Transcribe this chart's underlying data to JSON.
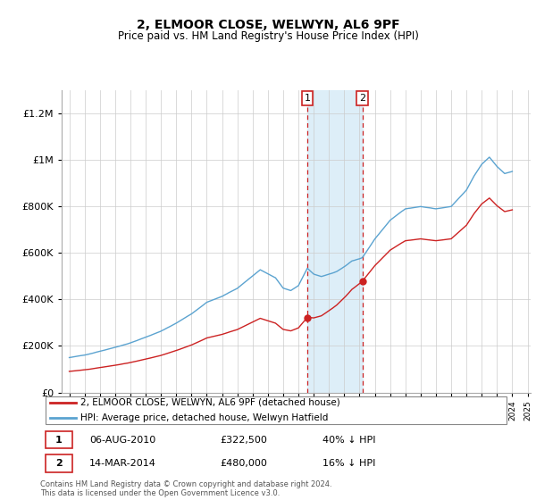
{
  "title": "2, ELMOOR CLOSE, WELWYN, AL6 9PF",
  "subtitle": "Price paid vs. HM Land Registry's House Price Index (HPI)",
  "hpi_label": "HPI: Average price, detached house, Welwyn Hatfield",
  "property_label": "2, ELMOOR CLOSE, WELWYN, AL6 9PF (detached house)",
  "footer": "Contains HM Land Registry data © Crown copyright and database right 2024.\nThis data is licensed under the Open Government Licence v3.0.",
  "sale1_date": "06-AUG-2010",
  "sale1_price": "£322,500",
  "sale1_note": "40% ↓ HPI",
  "sale2_date": "14-MAR-2014",
  "sale2_price": "£480,000",
  "sale2_note": "16% ↓ HPI",
  "sale1_year": 2010.58,
  "sale2_year": 2014.19,
  "sale1_value": 322500,
  "sale2_value": 480000,
  "hpi_color": "#5ba3d0",
  "price_color": "#cc2222",
  "shade_color": "#ddeef8",
  "vline_color": "#cc2222",
  "ylim": [
    0,
    1300000
  ],
  "yticks": [
    0,
    200000,
    400000,
    600000,
    800000,
    1000000,
    1200000
  ],
  "ytick_labels": [
    "£0",
    "£200K",
    "£400K",
    "£600K",
    "£800K",
    "£1M",
    "£1.2M"
  ]
}
